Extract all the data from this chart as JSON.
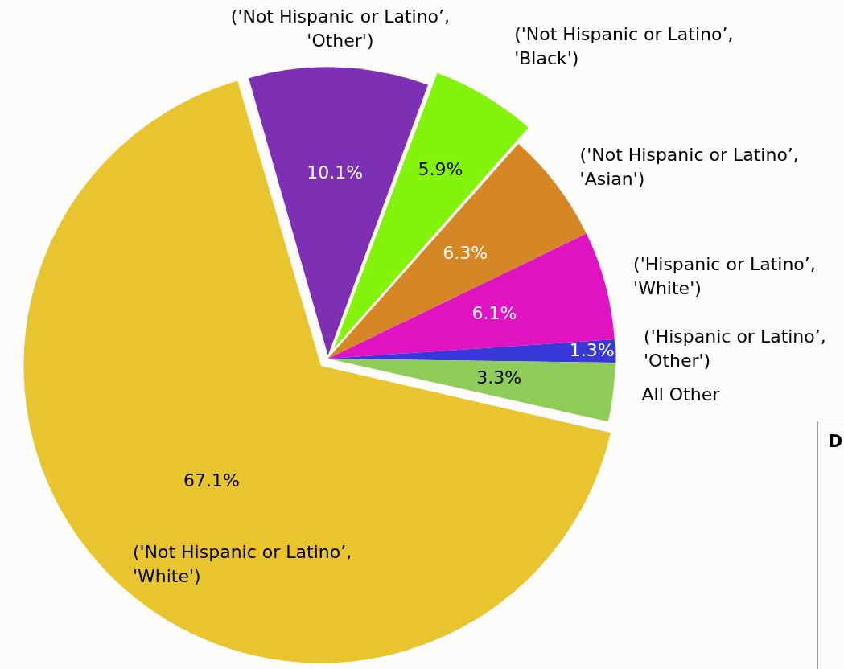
{
  "chart_data": {
    "type": "pie",
    "categories": [
      "('Not Hispanic or Latino’, 'Other')",
      "('Not Hispanic or Latino’, 'Black')",
      "('Not Hispanic or Latino’, 'Asian')",
      "('Hispanic or Latino’, 'White')",
      "('Hispanic or Latino’, 'Other')",
      "All Other",
      "('Not Hispanic or Latino’, 'White')"
    ],
    "values": [
      10.1,
      5.9,
      6.3,
      6.1,
      1.3,
      3.3,
      67.1
    ],
    "value_labels": [
      "10.1%",
      "5.9%",
      "6.3%",
      "6.1%",
      "1.3%",
      "3.3%",
      "67.1%"
    ],
    "colors": [
      "#7e30b4",
      "#84f30c",
      "#d58625",
      "#e013c0",
      "#3838d8",
      "#90cc5a",
      "#e8c52e"
    ],
    "legend": false,
    "annotations": [
      "D"
    ]
  }
}
